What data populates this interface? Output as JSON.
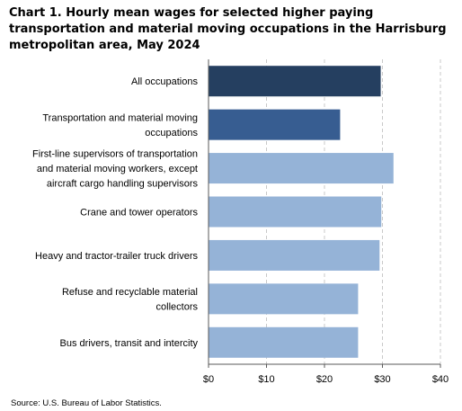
{
  "chart_data": {
    "type": "bar",
    "orientation": "horizontal",
    "title": "Chart 1. Hourly mean wages for selected higher paying transportation and material moving occupations in the Harrisburg metropolitan area, May 2024",
    "categories": [
      [
        "All occupations"
      ],
      [
        "Transportation and material moving",
        "occupations"
      ],
      [
        "First-line supervisors of transportation",
        "and material moving workers, except",
        "aircraft cargo handling supervisors"
      ],
      [
        "Crane and tower operators"
      ],
      [
        "Heavy and tractor-trailer truck drivers"
      ],
      [
        "Refuse and recyclable material",
        "collectors"
      ],
      [
        "Bus drivers, transit and intercity"
      ]
    ],
    "values": [
      29.7,
      22.7,
      31.9,
      29.8,
      29.5,
      25.8,
      25.8
    ],
    "bar_colors": [
      "#253f60",
      "#375d91",
      "#95b3d7",
      "#95b3d7",
      "#95b3d7",
      "#95b3d7",
      "#95b3d7"
    ],
    "xlim": [
      0,
      40
    ],
    "x_ticks": [
      0,
      10,
      20,
      30,
      40
    ],
    "x_tick_labels": [
      "$0",
      "$10",
      "$20",
      "$30",
      "$40"
    ],
    "grid": "vertical dashed",
    "legend": "none"
  },
  "source": "Source: U.S. Bureau of Labor Statistics."
}
